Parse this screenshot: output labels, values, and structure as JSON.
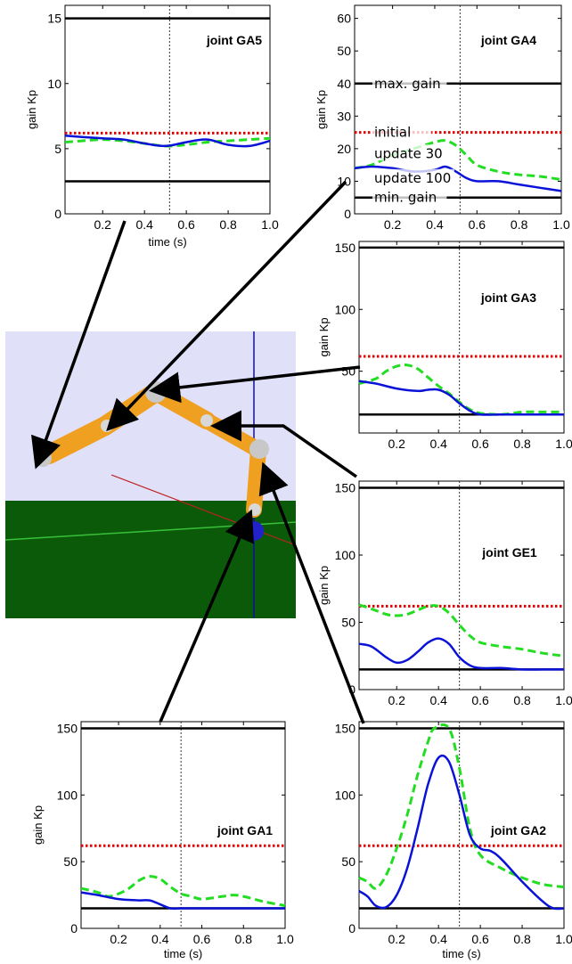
{
  "chart_data": [
    {
      "type": "line",
      "title": "joint GA5",
      "xlabel": "time (s)",
      "ylabel": "gain Kp",
      "xlim": [
        0.02,
        1.0
      ],
      "ylim": [
        0,
        16
      ],
      "xticks": [
        0.2,
        0.4,
        0.6,
        0.8,
        1.0
      ],
      "xtick_labels": [
        "0.2",
        "0.4",
        "0.6",
        "0.8",
        "1.0"
      ],
      "yticks": [
        0,
        5,
        10,
        15
      ],
      "ytick_labels": [
        "0",
        "5",
        "10",
        "15"
      ],
      "vline": 0.52,
      "series": [
        {
          "name": "max. gain",
          "color": "#000000",
          "style": "solid",
          "x": [
            0.02,
            1.0
          ],
          "y": [
            15,
            15
          ]
        },
        {
          "name": "min. gain",
          "color": "#000000",
          "style": "solid",
          "x": [
            0.02,
            1.0
          ],
          "y": [
            2.5,
            2.5
          ]
        },
        {
          "name": "initial",
          "color": "#e00000",
          "style": "dotted",
          "x": [
            0.02,
            1.0
          ],
          "y": [
            6.2,
            6.2
          ]
        },
        {
          "name": "update 30",
          "color": "#22dd22",
          "style": "dashed",
          "x": [
            0.02,
            0.1,
            0.2,
            0.3,
            0.4,
            0.5,
            0.6,
            0.7,
            0.8,
            0.9,
            1.0
          ],
          "y": [
            5.5,
            5.6,
            5.7,
            5.6,
            5.4,
            5.2,
            5.3,
            5.5,
            5.6,
            5.7,
            5.8
          ]
        },
        {
          "name": "update 100",
          "color": "#0a12d8",
          "style": "solid",
          "x": [
            0.02,
            0.1,
            0.2,
            0.3,
            0.4,
            0.5,
            0.6,
            0.7,
            0.8,
            0.9,
            1.0
          ],
          "y": [
            6.0,
            5.9,
            5.8,
            5.7,
            5.4,
            5.2,
            5.5,
            5.7,
            5.3,
            5.2,
            5.6
          ]
        }
      ]
    },
    {
      "type": "line",
      "title": "joint GA4",
      "xlabel": "",
      "ylabel": "gain Kp",
      "xlim": [
        0.02,
        1.0
      ],
      "ylim": [
        0,
        64
      ],
      "xticks": [
        0.2,
        0.4,
        0.6,
        0.8,
        1.0
      ],
      "xtick_labels": [
        "0.2",
        "0.4",
        "0.6",
        "0.8",
        "1.0"
      ],
      "yticks": [
        0,
        10,
        20,
        30,
        40,
        50,
        60
      ],
      "ytick_labels": [
        "0",
        "10",
        "20",
        "30",
        "40",
        "50",
        "60"
      ],
      "vline": 0.52,
      "legend": [
        "max. gain",
        "initial",
        "update 30",
        "update 100",
        "min. gain"
      ],
      "series": [
        {
          "name": "max. gain",
          "color": "#000000",
          "style": "solid",
          "x": [
            0.02,
            1.0
          ],
          "y": [
            40,
            40
          ]
        },
        {
          "name": "min. gain",
          "color": "#000000",
          "style": "solid",
          "x": [
            0.02,
            1.0
          ],
          "y": [
            5,
            5
          ]
        },
        {
          "name": "initial",
          "color": "#e00000",
          "style": "dotted",
          "x": [
            0.02,
            1.0
          ],
          "y": [
            25,
            25
          ]
        },
        {
          "name": "update 30",
          "color": "#22dd22",
          "style": "dashed",
          "x": [
            0.02,
            0.1,
            0.2,
            0.3,
            0.4,
            0.45,
            0.5,
            0.55,
            0.6,
            0.7,
            0.8,
            0.9,
            1.0
          ],
          "y": [
            14,
            15,
            18,
            20,
            22,
            22.5,
            21,
            18,
            15,
            13,
            12,
            11.5,
            10.5
          ]
        },
        {
          "name": "update 100",
          "color": "#0a12d8",
          "style": "solid",
          "x": [
            0.02,
            0.1,
            0.2,
            0.3,
            0.4,
            0.45,
            0.5,
            0.55,
            0.6,
            0.7,
            0.8,
            0.9,
            1.0
          ],
          "y": [
            14,
            14.5,
            14,
            13,
            13.5,
            14.5,
            13,
            11,
            10,
            10,
            9,
            8,
            7
          ]
        }
      ]
    },
    {
      "type": "line",
      "title": "joint GA3",
      "xlabel": "",
      "ylabel": "gain Kp",
      "xlim": [
        0.02,
        1.0
      ],
      "ylim": [
        0,
        155
      ],
      "xticks": [
        0.2,
        0.4,
        0.6,
        0.8,
        1.0
      ],
      "xtick_labels": [
        "0.2",
        "0.4",
        "0.6",
        "0.8",
        "1.0"
      ],
      "yticks": [
        50,
        100,
        150
      ],
      "ytick_labels": [
        "50",
        "100",
        "150"
      ],
      "vline": 0.5,
      "series": [
        {
          "name": "max. gain",
          "color": "#000000",
          "style": "solid",
          "x": [
            0.02,
            1.0
          ],
          "y": [
            150,
            150
          ]
        },
        {
          "name": "min. gain",
          "color": "#000000",
          "style": "solid",
          "x": [
            0.02,
            1.0
          ],
          "y": [
            15,
            15
          ]
        },
        {
          "name": "initial",
          "color": "#e00000",
          "style": "dotted",
          "x": [
            0.02,
            1.0
          ],
          "y": [
            62,
            62
          ]
        },
        {
          "name": "update 30",
          "color": "#22dd22",
          "style": "dashed",
          "x": [
            0.02,
            0.1,
            0.15,
            0.2,
            0.25,
            0.3,
            0.35,
            0.4,
            0.45,
            0.5,
            0.55,
            0.6,
            0.7,
            0.8,
            0.9,
            1.0
          ],
          "y": [
            40,
            44,
            50,
            54,
            55,
            52,
            45,
            38,
            32,
            25,
            19,
            16,
            15,
            17,
            17,
            17
          ]
        },
        {
          "name": "update 100",
          "color": "#0a12d8",
          "style": "solid",
          "x": [
            0.02,
            0.1,
            0.2,
            0.3,
            0.35,
            0.4,
            0.45,
            0.5,
            0.55,
            0.6,
            0.7,
            0.8,
            0.9,
            1.0
          ],
          "y": [
            42,
            40,
            36,
            34,
            35,
            35,
            31,
            24,
            18,
            15,
            15,
            15,
            15,
            15
          ]
        }
      ]
    },
    {
      "type": "line",
      "title": "joint GE1",
      "xlabel": "",
      "ylabel": "gain Kp",
      "xlim": [
        0.02,
        1.0
      ],
      "ylim": [
        0,
        155
      ],
      "xticks": [
        0.2,
        0.4,
        0.6,
        0.8,
        1.0
      ],
      "xtick_labels": [
        "0.2",
        "0.4",
        "0.6",
        "0.8",
        "1.0"
      ],
      "yticks": [
        0,
        50,
        100,
        150
      ],
      "ytick_labels": [
        "0",
        "50",
        "100",
        "150"
      ],
      "vline": 0.5,
      "series": [
        {
          "name": "max. gain",
          "color": "#000000",
          "style": "solid",
          "x": [
            0.02,
            1.0
          ],
          "y": [
            150,
            150
          ]
        },
        {
          "name": "min. gain",
          "color": "#000000",
          "style": "solid",
          "x": [
            0.02,
            1.0
          ],
          "y": [
            15,
            15
          ]
        },
        {
          "name": "initial",
          "color": "#e00000",
          "style": "dotted",
          "x": [
            0.02,
            1.0
          ],
          "y": [
            62,
            62
          ]
        },
        {
          "name": "update 30",
          "color": "#22dd22",
          "style": "dashed",
          "x": [
            0.02,
            0.08,
            0.15,
            0.2,
            0.25,
            0.3,
            0.35,
            0.4,
            0.45,
            0.5,
            0.55,
            0.6,
            0.7,
            0.8,
            0.9,
            1.0
          ],
          "y": [
            63,
            60,
            56,
            55,
            56,
            59,
            62,
            62,
            57,
            48,
            40,
            35,
            32,
            30,
            27,
            25
          ]
        },
        {
          "name": "update 100",
          "color": "#0a12d8",
          "style": "solid",
          "x": [
            0.02,
            0.08,
            0.15,
            0.2,
            0.25,
            0.3,
            0.35,
            0.4,
            0.45,
            0.5,
            0.55,
            0.6,
            0.7,
            0.8,
            0.9,
            1.0
          ],
          "y": [
            34,
            32,
            24,
            20,
            22,
            28,
            35,
            38,
            34,
            24,
            18,
            16,
            16,
            15,
            15,
            15
          ]
        }
      ]
    },
    {
      "type": "line",
      "title": "joint GA1",
      "xlabel": "time (s)",
      "ylabel": "gain Kp",
      "xlim": [
        0.02,
        1.0
      ],
      "ylim": [
        0,
        155
      ],
      "xticks": [
        0.2,
        0.4,
        0.6,
        0.8,
        1.0
      ],
      "xtick_labels": [
        "0.2",
        "0.4",
        "0.6",
        "0.8",
        "1.0"
      ],
      "yticks": [
        0,
        50,
        100,
        150
      ],
      "ytick_labels": [
        "0",
        "50",
        "100",
        "150"
      ],
      "vline": 0.5,
      "series": [
        {
          "name": "max. gain",
          "color": "#000000",
          "style": "solid",
          "x": [
            0.02,
            1.0
          ],
          "y": [
            150,
            150
          ]
        },
        {
          "name": "min. gain",
          "color": "#000000",
          "style": "solid",
          "x": [
            0.02,
            1.0
          ],
          "y": [
            15,
            15
          ]
        },
        {
          "name": "initial",
          "color": "#e00000",
          "style": "dotted",
          "x": [
            0.02,
            1.0
          ],
          "y": [
            62,
            62
          ]
        },
        {
          "name": "update 30",
          "color": "#22dd22",
          "style": "dashed",
          "x": [
            0.02,
            0.1,
            0.15,
            0.2,
            0.25,
            0.3,
            0.35,
            0.4,
            0.45,
            0.5,
            0.55,
            0.6,
            0.7,
            0.75,
            0.8,
            0.9,
            1.0
          ],
          "y": [
            30,
            27,
            24,
            26,
            30,
            36,
            39,
            37,
            31,
            26,
            24,
            22,
            24,
            25,
            24,
            20,
            17
          ]
        },
        {
          "name": "update 100",
          "color": "#0a12d8",
          "style": "solid",
          "x": [
            0.02,
            0.1,
            0.2,
            0.3,
            0.35,
            0.4,
            0.45,
            0.5,
            0.6,
            0.8,
            1.0
          ],
          "y": [
            27,
            25,
            22,
            21,
            21,
            18,
            15,
            15,
            15,
            15,
            15
          ]
        }
      ]
    },
    {
      "type": "line",
      "title": "joint GA2",
      "xlabel": "time (s)",
      "ylabel": "gain Kp",
      "xlim": [
        0.02,
        1.0
      ],
      "ylim": [
        0,
        155
      ],
      "xticks": [
        0.2,
        0.4,
        0.6,
        0.8,
        1.0
      ],
      "xtick_labels": [
        "0.2",
        "0.4",
        "0.6",
        "0.8",
        "1.0"
      ],
      "yticks": [
        0,
        50,
        100,
        150
      ],
      "ytick_labels": [
        "0",
        "50",
        "100",
        "150"
      ],
      "vline": 0.5,
      "series": [
        {
          "name": "max. gain",
          "color": "#000000",
          "style": "solid",
          "x": [
            0.02,
            1.0
          ],
          "y": [
            150,
            150
          ]
        },
        {
          "name": "min. gain",
          "color": "#000000",
          "style": "solid",
          "x": [
            0.02,
            1.0
          ],
          "y": [
            15,
            15
          ]
        },
        {
          "name": "initial",
          "color": "#e00000",
          "style": "dotted",
          "x": [
            0.02,
            1.0
          ],
          "y": [
            62,
            62
          ]
        },
        {
          "name": "update 30",
          "color": "#22dd22",
          "style": "dashed",
          "x": [
            0.02,
            0.06,
            0.1,
            0.15,
            0.2,
            0.25,
            0.3,
            0.35,
            0.38,
            0.45,
            0.5,
            0.55,
            0.6,
            0.7,
            0.8,
            0.9,
            1.0
          ],
          "y": [
            38,
            35,
            30,
            40,
            60,
            85,
            115,
            140,
            150,
            150,
            120,
            75,
            55,
            45,
            38,
            33,
            31
          ]
        },
        {
          "name": "update 100",
          "color": "#0a12d8",
          "style": "solid",
          "x": [
            0.02,
            0.06,
            0.1,
            0.15,
            0.2,
            0.25,
            0.3,
            0.35,
            0.4,
            0.45,
            0.5,
            0.55,
            0.6,
            0.65,
            0.7,
            0.8,
            0.9,
            0.95,
            1.0
          ],
          "y": [
            28,
            24,
            17,
            16,
            25,
            45,
            75,
            108,
            128,
            125,
            100,
            70,
            60,
            58,
            52,
            35,
            20,
            15,
            15
          ]
        }
      ]
    }
  ],
  "scene": {
    "colors": {
      "sky": "#e0e0f8",
      "ground": "#0a5a0a",
      "link": "#f0a020",
      "joint": "#c8c8c8",
      "axis_blue": "#1010a0",
      "axis_red": "#c02020"
    }
  }
}
